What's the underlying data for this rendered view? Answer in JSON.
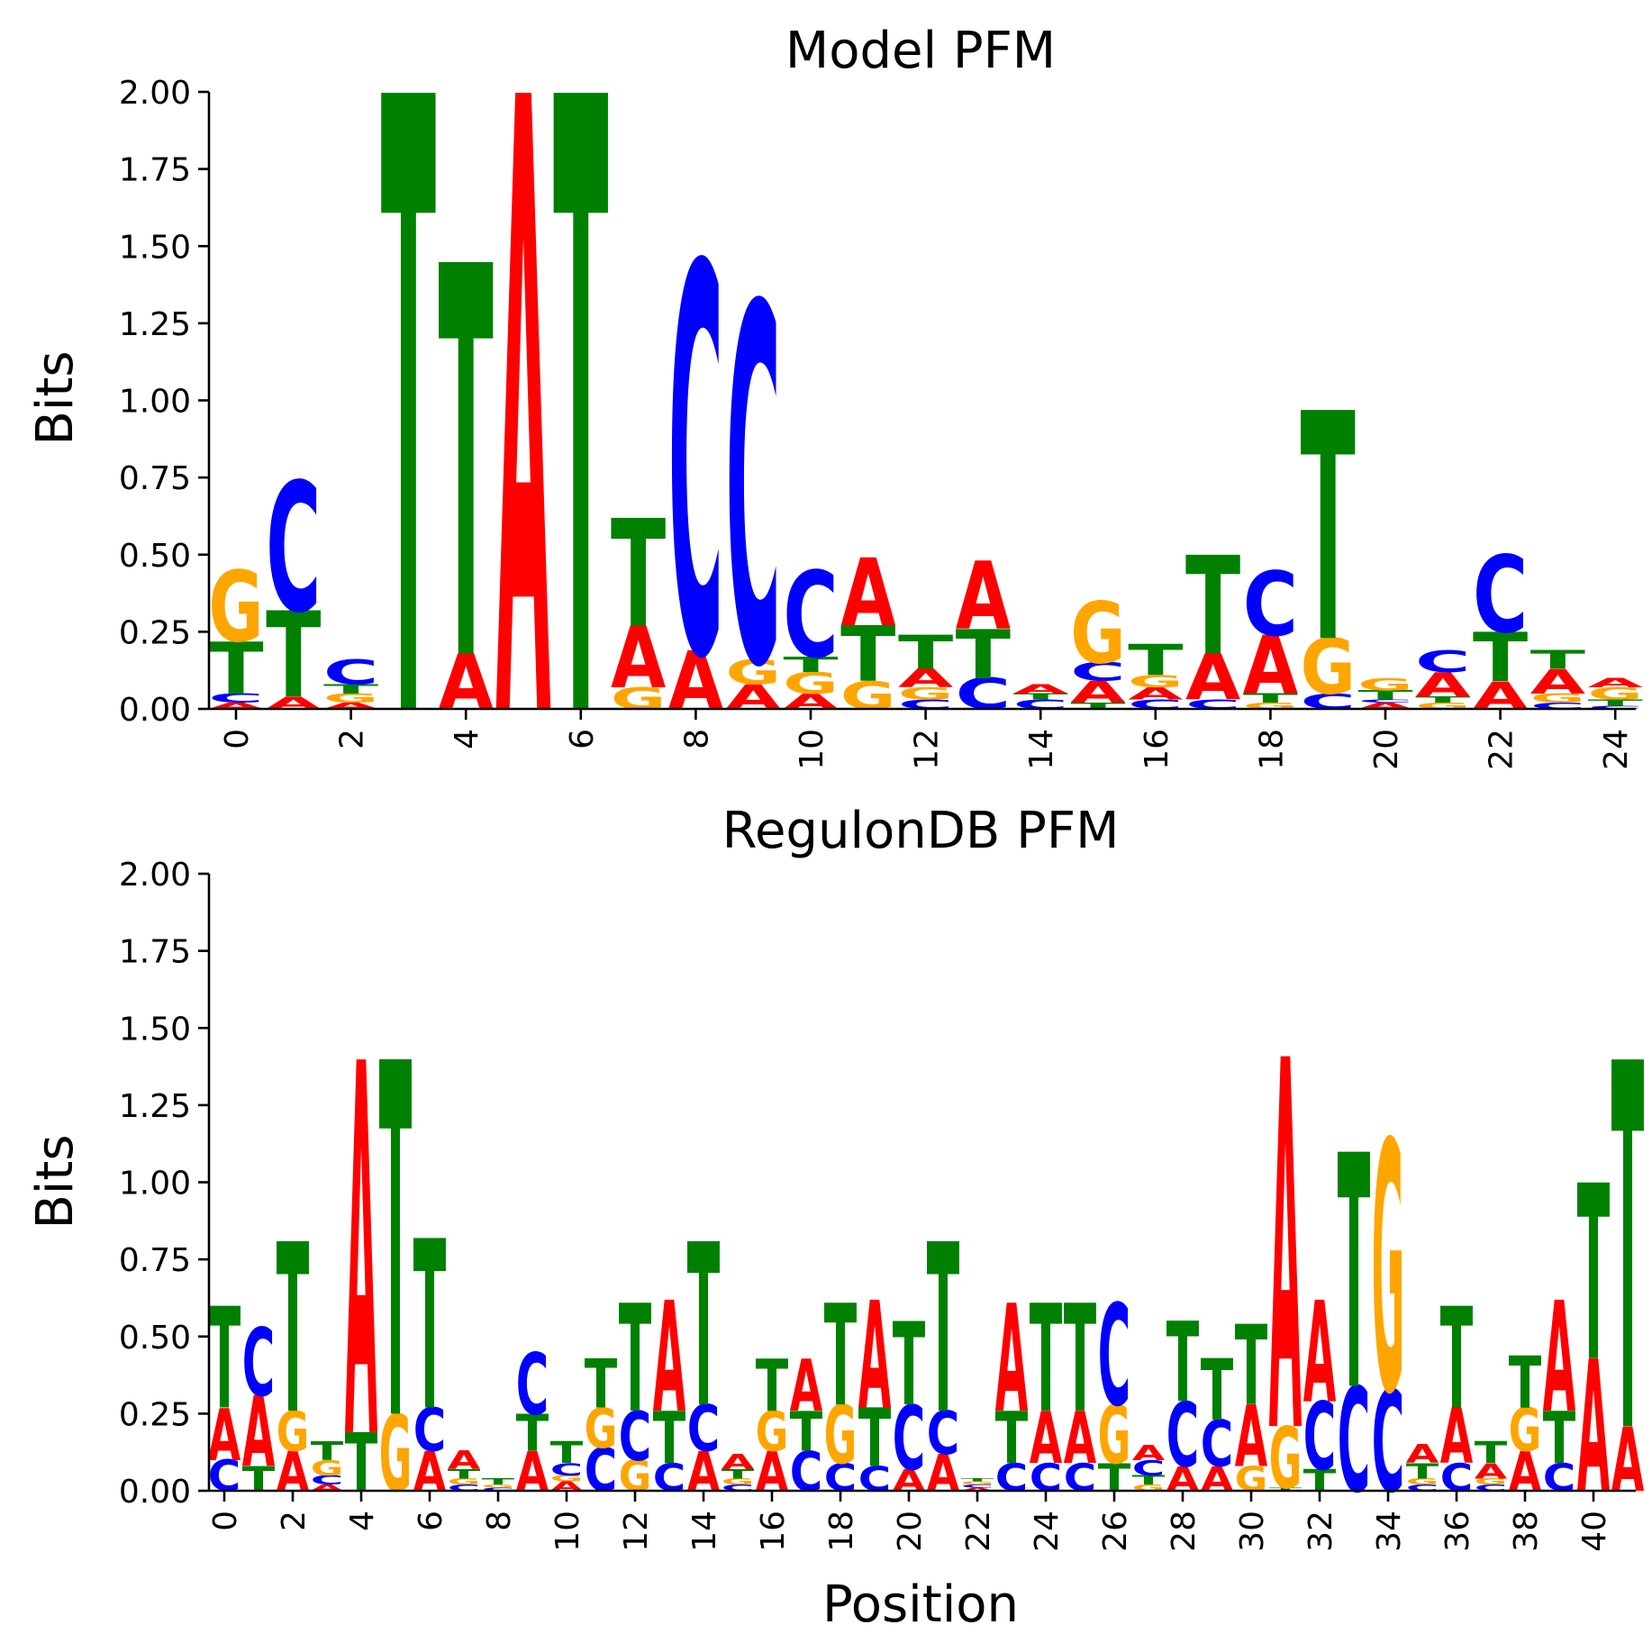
{
  "colors": {
    "A": "#ff0000",
    "C": "#0000ff",
    "G": "#ffa500",
    "T": "#008000"
  },
  "chart_data": [
    {
      "type": "sequence-logo",
      "title": "Model PFM",
      "ylabel": "Bits",
      "xlabel": "",
      "ylim": [
        0,
        2
      ],
      "yticks": [
        "0.00",
        "0.25",
        "0.50",
        "0.75",
        "1.00",
        "1.25",
        "1.50",
        "1.75",
        "2.00"
      ],
      "xticks": [
        0,
        2,
        4,
        6,
        8,
        10,
        12,
        14,
        16,
        18,
        20,
        22,
        24
      ],
      "positions": [
        [
          [
            "A",
            0.02
          ],
          [
            "C",
            0.03
          ],
          [
            "T",
            0.17
          ],
          [
            "G",
            0.23
          ]
        ],
        [
          [
            "A",
            0.04
          ],
          [
            "T",
            0.28
          ],
          [
            "C",
            0.42
          ]
        ],
        [
          [
            "A",
            0.02
          ],
          [
            "G",
            0.03
          ],
          [
            "T",
            0.03
          ],
          [
            "C",
            0.08
          ]
        ],
        [
          [
            "T",
            2.0
          ]
        ],
        [
          [
            "A",
            0.18
          ],
          [
            "T",
            1.27
          ]
        ],
        [
          [
            "A",
            2.0
          ]
        ],
        [
          [
            "T",
            2.0
          ]
        ],
        [
          [
            "G",
            0.07
          ],
          [
            "A",
            0.2
          ],
          [
            "T",
            0.35
          ]
        ],
        [
          [
            "A",
            0.19
          ],
          [
            "C",
            1.26
          ]
        ],
        [
          [
            "A",
            0.08
          ],
          [
            "G",
            0.08
          ],
          [
            "C",
            1.16
          ]
        ],
        [
          [
            "A",
            0.05
          ],
          [
            "G",
            0.07
          ],
          [
            "T",
            0.05
          ],
          [
            "C",
            0.28
          ]
        ],
        [
          [
            "G",
            0.09
          ],
          [
            "T",
            0.18
          ],
          [
            "A",
            0.22
          ]
        ],
        [
          [
            "C",
            0.03
          ],
          [
            "G",
            0.04
          ],
          [
            "A",
            0.06
          ],
          [
            "T",
            0.11
          ]
        ],
        [
          [
            "C",
            0.1
          ],
          [
            "T",
            0.16
          ],
          [
            "A",
            0.22
          ]
        ],
        [
          [
            "C",
            0.03
          ],
          [
            "T",
            0.02
          ],
          [
            "A",
            0.03
          ]
        ],
        [
          [
            "T",
            0.02
          ],
          [
            "A",
            0.07
          ],
          [
            "C",
            0.06
          ],
          [
            "G",
            0.2
          ]
        ],
        [
          [
            "C",
            0.03
          ],
          [
            "A",
            0.04
          ],
          [
            "G",
            0.04
          ],
          [
            "T",
            0.1
          ]
        ],
        [
          [
            "C",
            0.03
          ],
          [
            "A",
            0.15
          ],
          [
            "T",
            0.32
          ]
        ],
        [
          [
            "G",
            0.02
          ],
          [
            "T",
            0.03
          ],
          [
            "A",
            0.19
          ],
          [
            "C",
            0.21
          ]
        ],
        [
          [
            "C",
            0.05
          ],
          [
            "G",
            0.18
          ],
          [
            "T",
            0.74
          ]
        ],
        [
          [
            "A",
            0.02
          ],
          [
            "C",
            0.01
          ],
          [
            "T",
            0.03
          ],
          [
            "G",
            0.04
          ]
        ],
        [
          [
            "G",
            0.02
          ],
          [
            "T",
            0.02
          ],
          [
            "A",
            0.08
          ],
          [
            "C",
            0.07
          ]
        ],
        [
          [
            "A",
            0.09
          ],
          [
            "T",
            0.16
          ],
          [
            "C",
            0.25
          ]
        ],
        [
          [
            "C",
            0.02
          ],
          [
            "G",
            0.03
          ],
          [
            "A",
            0.08
          ],
          [
            "T",
            0.06
          ]
        ],
        [
          [
            "C",
            0.01
          ],
          [
            "T",
            0.02
          ],
          [
            "G",
            0.04
          ],
          [
            "A",
            0.03
          ]
        ]
      ]
    },
    {
      "type": "sequence-logo",
      "title": "RegulonDB PFM",
      "ylabel": "Bits",
      "xlabel": "Position",
      "ylim": [
        0,
        2
      ],
      "yticks": [
        "0.00",
        "0.25",
        "0.50",
        "0.75",
        "1.00",
        "1.25",
        "1.50",
        "1.75",
        "2.00"
      ],
      "xticks": [
        0,
        2,
        4,
        6,
        8,
        10,
        12,
        14,
        16,
        18,
        20,
        22,
        24,
        26,
        28,
        30,
        32,
        34,
        36,
        38,
        40
      ],
      "positions": [
        [
          [
            "C",
            0.1
          ],
          [
            "A",
            0.17
          ],
          [
            "T",
            0.33
          ]
        ],
        [
          [
            "T",
            0.08
          ],
          [
            "A",
            0.23
          ],
          [
            "C",
            0.22
          ]
        ],
        [
          [
            "A",
            0.13
          ],
          [
            "G",
            0.13
          ],
          [
            "T",
            0.55
          ]
        ],
        [
          [
            "A",
            0.02
          ],
          [
            "C",
            0.03
          ],
          [
            "G",
            0.05
          ],
          [
            "T",
            0.06
          ]
        ],
        [
          [
            "T",
            0.19
          ],
          [
            "A",
            1.21
          ]
        ],
        [
          [
            "G",
            0.25
          ],
          [
            "T",
            1.15
          ]
        ],
        [
          [
            "A",
            0.13
          ],
          [
            "C",
            0.14
          ],
          [
            "T",
            0.55
          ]
        ],
        [
          [
            "C",
            0.02
          ],
          [
            "G",
            0.02
          ],
          [
            "T",
            0.03
          ],
          [
            "A",
            0.06
          ]
        ],
        [
          [
            "C",
            0.01
          ],
          [
            "G",
            0.01
          ],
          [
            "T",
            0.02
          ]
        ],
        [
          [
            "A",
            0.13
          ],
          [
            "T",
            0.12
          ],
          [
            "C",
            0.2
          ]
        ],
        [
          [
            "A",
            0.03
          ],
          [
            "G",
            0.02
          ],
          [
            "C",
            0.04
          ],
          [
            "T",
            0.07
          ]
        ],
        [
          [
            "C",
            0.14
          ],
          [
            "G",
            0.13
          ],
          [
            "T",
            0.16
          ]
        ],
        [
          [
            "G",
            0.1
          ],
          [
            "C",
            0.16
          ],
          [
            "T",
            0.35
          ]
        ],
        [
          [
            "C",
            0.09
          ],
          [
            "T",
            0.17
          ],
          [
            "A",
            0.36
          ]
        ],
        [
          [
            "A",
            0.13
          ],
          [
            "C",
            0.15
          ],
          [
            "T",
            0.53
          ]
        ],
        [
          [
            "C",
            0.02
          ],
          [
            "G",
            0.02
          ],
          [
            "T",
            0.03
          ],
          [
            "A",
            0.05
          ]
        ],
        [
          [
            "A",
            0.13
          ],
          [
            "G",
            0.13
          ],
          [
            "T",
            0.17
          ]
        ],
        [
          [
            "C",
            0.13
          ],
          [
            "T",
            0.13
          ],
          [
            "A",
            0.17
          ]
        ],
        [
          [
            "C",
            0.09
          ],
          [
            "G",
            0.19
          ],
          [
            "T",
            0.33
          ]
        ],
        [
          [
            "C",
            0.08
          ],
          [
            "T",
            0.19
          ],
          [
            "A",
            0.35
          ]
        ],
        [
          [
            "A",
            0.07
          ],
          [
            "C",
            0.21
          ],
          [
            "T",
            0.27
          ]
        ],
        [
          [
            "A",
            0.12
          ],
          [
            "C",
            0.14
          ],
          [
            "T",
            0.55
          ]
        ],
        [
          [
            "A",
            0.01
          ],
          [
            "C",
            0.01
          ],
          [
            "G",
            0.01
          ],
          [
            "T",
            0.01
          ]
        ],
        [
          [
            "C",
            0.09
          ],
          [
            "T",
            0.17
          ],
          [
            "A",
            0.35
          ]
        ],
        [
          [
            "C",
            0.09
          ],
          [
            "A",
            0.17
          ],
          [
            "T",
            0.35
          ]
        ],
        [
          [
            "C",
            0.09
          ],
          [
            "A",
            0.17
          ],
          [
            "T",
            0.35
          ]
        ],
        [
          [
            "T",
            0.09
          ],
          [
            "G",
            0.19
          ],
          [
            "C",
            0.33
          ]
        ],
        [
          [
            "G",
            0.02
          ],
          [
            "T",
            0.03
          ],
          [
            "C",
            0.05
          ],
          [
            "A",
            0.05
          ]
        ],
        [
          [
            "A",
            0.08
          ],
          [
            "C",
            0.21
          ],
          [
            "T",
            0.26
          ]
        ],
        [
          [
            "A",
            0.08
          ],
          [
            "C",
            0.15
          ],
          [
            "T",
            0.2
          ]
        ],
        [
          [
            "G",
            0.08
          ],
          [
            "A",
            0.2
          ],
          [
            "T",
            0.26
          ]
        ],
        [
          [
            "T",
            0.01
          ],
          [
            "G",
            0.2
          ],
          [
            "A",
            1.2
          ]
        ],
        [
          [
            "T",
            0.07
          ],
          [
            "C",
            0.22
          ],
          [
            "A",
            0.33
          ]
        ],
        [
          [
            "C",
            0.34
          ],
          [
            "T",
            0.76
          ]
        ],
        [
          [
            "C",
            0.33
          ],
          [
            "G",
            0.81
          ]
        ],
        [
          [
            "C",
            0.02
          ],
          [
            "G",
            0.02
          ],
          [
            "T",
            0.05
          ],
          [
            "A",
            0.06
          ]
        ],
        [
          [
            "C",
            0.09
          ],
          [
            "A",
            0.18
          ],
          [
            "T",
            0.33
          ]
        ],
        [
          [
            "C",
            0.02
          ],
          [
            "G",
            0.02
          ],
          [
            "A",
            0.05
          ],
          [
            "T",
            0.07
          ]
        ],
        [
          [
            "A",
            0.13
          ],
          [
            "G",
            0.14
          ],
          [
            "T",
            0.17
          ]
        ],
        [
          [
            "C",
            0.09
          ],
          [
            "T",
            0.17
          ],
          [
            "A",
            0.36
          ]
        ],
        [
          [
            "A",
            0.43
          ],
          [
            "T",
            0.57
          ]
        ],
        [
          [
            "A",
            0.21
          ],
          [
            "T",
            1.19
          ]
        ]
      ]
    }
  ]
}
